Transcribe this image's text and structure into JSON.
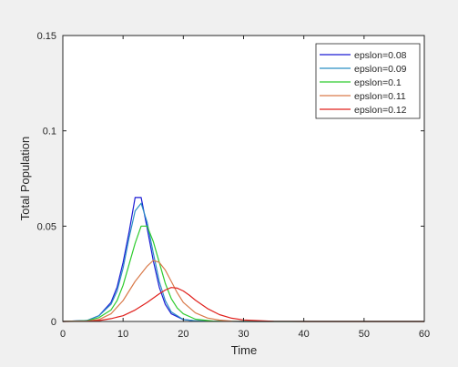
{
  "chart_data": {
    "type": "line",
    "xlabel": "Time",
    "ylabel": "Total Population",
    "xlim": [
      0,
      60
    ],
    "ylim": [
      0,
      0.15
    ],
    "xticks": [
      0,
      10,
      20,
      30,
      40,
      50,
      60
    ],
    "yticks": [
      0,
      0.05,
      0.1,
      0.15
    ],
    "ytick_labels": [
      "0",
      "0.05",
      "0.1",
      "0.15"
    ],
    "legend_position": "top-right",
    "grid": false,
    "series": [
      {
        "name": "epslon=0.08",
        "color": "#1a1ad4",
        "x": [
          0,
          4,
          6,
          8,
          9,
          10,
          11,
          12,
          13,
          14,
          15,
          16,
          17,
          18,
          20,
          22,
          25,
          30,
          60
        ],
        "y": [
          0,
          0.0005,
          0.003,
          0.01,
          0.018,
          0.031,
          0.047,
          0.065,
          0.065,
          0.049,
          0.032,
          0.018,
          0.009,
          0.004,
          0.001,
          0.0003,
          0.0001,
          0,
          0
        ]
      },
      {
        "name": "epslon=0.09",
        "color": "#2a8fc4",
        "x": [
          0,
          4,
          6,
          8,
          9,
          10,
          11,
          12,
          13,
          14,
          15,
          16,
          17,
          18,
          20,
          22,
          25,
          30,
          60
        ],
        "y": [
          0,
          0.0005,
          0.003,
          0.009,
          0.016,
          0.028,
          0.044,
          0.058,
          0.062,
          0.052,
          0.036,
          0.021,
          0.011,
          0.005,
          0.001,
          0.0004,
          0.0001,
          0,
          0
        ]
      },
      {
        "name": "epslon=0.1",
        "color": "#2ecc2e",
        "x": [
          0,
          4,
          6,
          8,
          9,
          10,
          11,
          12,
          13,
          14,
          15,
          16,
          17,
          18,
          19,
          20,
          22,
          25,
          30,
          60
        ],
        "y": [
          0,
          0.0004,
          0.002,
          0.006,
          0.011,
          0.019,
          0.03,
          0.041,
          0.05,
          0.05,
          0.042,
          0.031,
          0.02,
          0.012,
          0.007,
          0.004,
          0.0012,
          0.0002,
          0,
          0
        ]
      },
      {
        "name": "epslon=0.11",
        "color": "#d97a4a",
        "x": [
          0,
          4,
          6,
          8,
          10,
          12,
          14,
          15,
          16,
          17,
          18,
          19,
          20,
          22,
          24,
          26,
          28,
          30,
          35,
          60
        ],
        "y": [
          0,
          0.0002,
          0.001,
          0.004,
          0.011,
          0.021,
          0.029,
          0.032,
          0.031,
          0.027,
          0.021,
          0.015,
          0.01,
          0.0045,
          0.0018,
          0.0007,
          0.0002,
          0.0001,
          0,
          0
        ]
      },
      {
        "name": "epslon=0.12",
        "color": "#e0201c",
        "x": [
          0,
          4,
          6,
          8,
          10,
          12,
          14,
          16,
          17,
          18,
          19,
          20,
          21,
          22,
          24,
          26,
          28,
          30,
          35,
          40,
          60
        ],
        "y": [
          0,
          0.0001,
          0.0005,
          0.0015,
          0.003,
          0.006,
          0.01,
          0.0145,
          0.0165,
          0.0178,
          0.0175,
          0.016,
          0.0138,
          0.0112,
          0.0068,
          0.0036,
          0.0017,
          0.0008,
          0.0001,
          0,
          0
        ]
      }
    ]
  }
}
